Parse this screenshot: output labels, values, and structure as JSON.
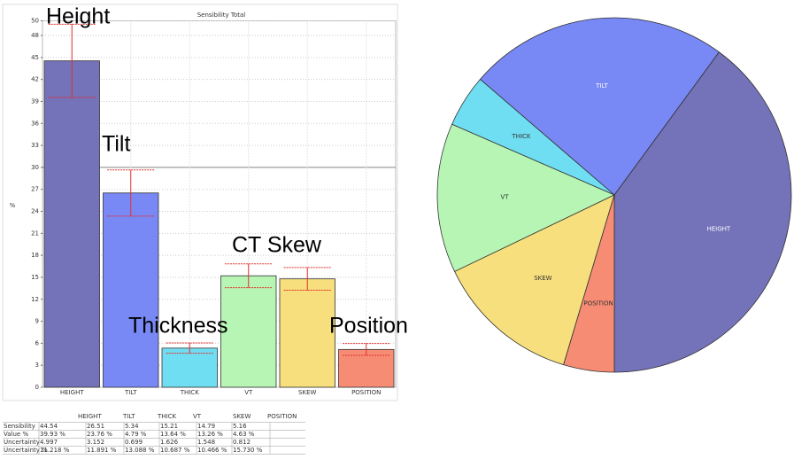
{
  "chart_data": [
    {
      "type": "bar",
      "title": "Sensibility Total",
      "ylabel": "%",
      "categories": [
        "HEIGHT",
        "TILT",
        "THICK",
        "VT",
        "SKEW",
        "POSITION"
      ],
      "values": [
        44.54,
        26.51,
        5.34,
        15.21,
        14.79,
        5.16
      ],
      "errors": [
        4.997,
        3.152,
        0.699,
        1.626,
        1.548,
        0.812
      ],
      "colors": [
        "#7472b8",
        "#7889f5",
        "#70def2",
        "#b6f5b4",
        "#f6df7c",
        "#f68c74"
      ],
      "error_color": "#e03030",
      "ylim": [
        0,
        50
      ],
      "yticks": [
        0,
        3,
        6,
        9,
        12,
        15,
        18,
        21,
        24,
        27,
        30,
        33,
        36,
        39,
        42,
        45,
        48,
        50
      ],
      "reference_line": 30,
      "grid": true,
      "annotations": [
        "Height",
        "Tilt",
        "Thickness",
        "CT Skew",
        "Position"
      ]
    },
    {
      "type": "pie",
      "categories": [
        "HEIGHT",
        "TILT",
        "THICK",
        "VT",
        "SKEW",
        "POSITION"
      ],
      "values": [
        39.93,
        23.76,
        4.79,
        13.64,
        13.26,
        4.63
      ],
      "colors": [
        "#7472b8",
        "#7889f5",
        "#70def2",
        "#b6f5b4",
        "#f6df7c",
        "#f68c74"
      ]
    }
  ],
  "table": {
    "header": [
      "HEIGHT",
      "TILT",
      "THICK",
      "VT",
      "SKEW",
      "POSITION"
    ],
    "rows": [
      [
        "Sensibility",
        "44.54",
        "26.51",
        "5.34",
        "15.21",
        "14.79",
        "5.16"
      ],
      [
        "Value %",
        "39.93 %",
        "23.76 %",
        "4.79 %",
        "13.64 %",
        "13.26 %",
        "4.63 %"
      ],
      [
        "Uncertainty",
        "4.997",
        "3.152",
        "0.699",
        "1.626",
        "1.548",
        "0.812"
      ],
      [
        "Uncertainty %",
        "11.218 %",
        "11.891 %",
        "13.088 %",
        "10.687 %",
        "10.466 %",
        "15.730 %"
      ]
    ]
  }
}
